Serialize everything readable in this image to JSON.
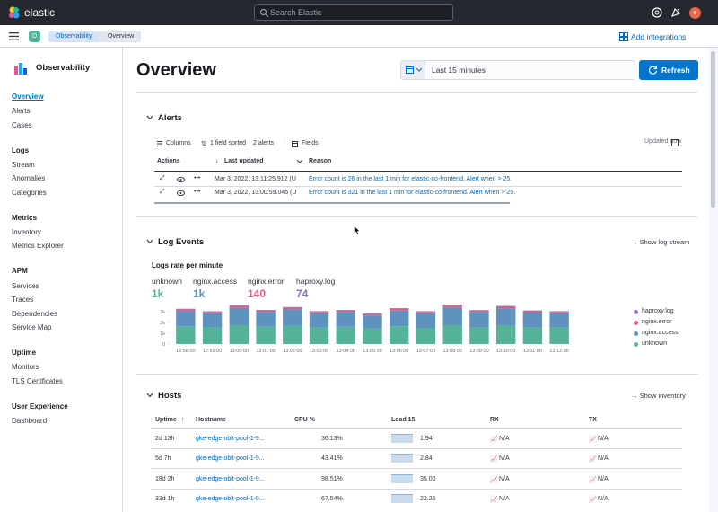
{
  "topbar": {
    "app_name": "elastic",
    "search_placeholder": "Search Elastic",
    "avatar": "e"
  },
  "subbar": {
    "space": "D",
    "breadcrumbs": [
      "Observability",
      "Overview"
    ],
    "add_integrations": "Add integrations"
  },
  "sidebar": {
    "title": "Observability",
    "groups": [
      {
        "items": [
          "Overview",
          "Alerts",
          "Cases"
        ]
      },
      {
        "title": "Logs",
        "items": [
          "Stream",
          "Anomalies",
          "Categories"
        ]
      },
      {
        "title": "Metrics",
        "items": [
          "Inventory",
          "Metrics Explorer"
        ]
      },
      {
        "title": "APM",
        "items": [
          "Services",
          "Traces",
          "Dependencies",
          "Service Map"
        ]
      },
      {
        "title": "Uptime",
        "items": [
          "Monitors",
          "TLS Certificates"
        ]
      },
      {
        "title": "User Experience",
        "items": [
          "Dashboard"
        ]
      }
    ]
  },
  "header": {
    "title": "Overview",
    "date_range": "Last 15 minutes",
    "refresh": "Refresh"
  },
  "alerts": {
    "title": "Alerts",
    "toolbar": {
      "columns": "Columns",
      "sorted": "1 field sorted",
      "count": "2 alerts",
      "fields": "Fields",
      "updated": "Updated now"
    },
    "headers": [
      "Actions",
      "Last updated",
      "Reason"
    ],
    "rows": [
      {
        "updated": "Mar 3, 2022, 13:11:25.912 (U",
        "reason": "Error count is 26 in the last 1 min for elastic-co-frontend. Alert when > 25."
      },
      {
        "updated": "Mar 3, 2022, 13:00:59.045 (U",
        "reason": "Error count is 321 in the last 1 min for elastic-co-frontend. Alert when > 25."
      }
    ]
  },
  "log_events": {
    "title": "Log Events",
    "link": "Show log stream",
    "chart_title": "Logs rate per minute",
    "stats": [
      {
        "label": "unknown",
        "value": "1k",
        "color": "#54b399"
      },
      {
        "label": "nginx.access",
        "value": "1k",
        "color": "#6092c0"
      },
      {
        "label": "nginx.error",
        "value": "140",
        "color": "#d36086"
      },
      {
        "label": "haproxy.log",
        "value": "74",
        "color": "#9170b8"
      }
    ]
  },
  "chart_data": {
    "type": "bar",
    "stacked": true,
    "title": "Logs rate per minute",
    "categories": [
      "12:58:00",
      "12:59:00",
      "13:00:00",
      "13:01:00",
      "13:02:00",
      "13:03:00",
      "13:04:00",
      "13:05:00",
      "13:06:00",
      "13:07:00",
      "13:08:00",
      "13:09:00",
      "13:10:00",
      "13:11:00",
      "13:12:00"
    ],
    "y_ticks": [
      "3k",
      "2k",
      "1k",
      "0"
    ],
    "ylim": [
      0,
      3500
    ],
    "series": [
      {
        "name": "unknown",
        "color": "#54b399",
        "values": [
          1650,
          1550,
          1750,
          1600,
          1700,
          1550,
          1600,
          1450,
          1650,
          1500,
          1750,
          1550,
          1700,
          1550,
          1550
        ]
      },
      {
        "name": "nginx.access",
        "color": "#6092c0",
        "values": [
          1400,
          1300,
          1600,
          1350,
          1500,
          1300,
          1350,
          1200,
          1450,
          1350,
          1650,
          1400,
          1600,
          1350,
          1300
        ]
      },
      {
        "name": "nginx.error",
        "color": "#d36086",
        "values": [
          150,
          130,
          180,
          140,
          160,
          130,
          140,
          120,
          150,
          130,
          170,
          130,
          160,
          140,
          130
        ]
      },
      {
        "name": "haproxy.log",
        "color": "#9170b8",
        "values": [
          70,
          60,
          80,
          70,
          75,
          65,
          70,
          60,
          70,
          65,
          80,
          65,
          75,
          70,
          65
        ]
      }
    ]
  },
  "hosts": {
    "title": "Hosts",
    "link": "Show inventory",
    "headers": [
      "Uptime",
      "Hostname",
      "CPU %",
      "Load 15",
      "RX",
      "TX"
    ],
    "rows": [
      {
        "uptime": "2d 13h",
        "host": "gke-edge-oblt-pool-1-9...",
        "cpu": "36.13%",
        "load": "1.94",
        "rx": "N/A",
        "tx": "N/A"
      },
      {
        "uptime": "5d 7h",
        "host": "gke-edge-oblt-pool-1-9...",
        "cpu": "43.41%",
        "load": "2.84",
        "rx": "N/A",
        "tx": "N/A"
      },
      {
        "uptime": "18d 2h",
        "host": "gke-edge-oblt-pool-1-9...",
        "cpu": "98.51%",
        "load": "35.00",
        "rx": "N/A",
        "tx": "N/A"
      },
      {
        "uptime": "33d 1h",
        "host": "gke-edge-oblt-pool-1-9...",
        "cpu": "67.54%",
        "load": "22.25",
        "rx": "N/A",
        "tx": "N/A"
      }
    ]
  }
}
